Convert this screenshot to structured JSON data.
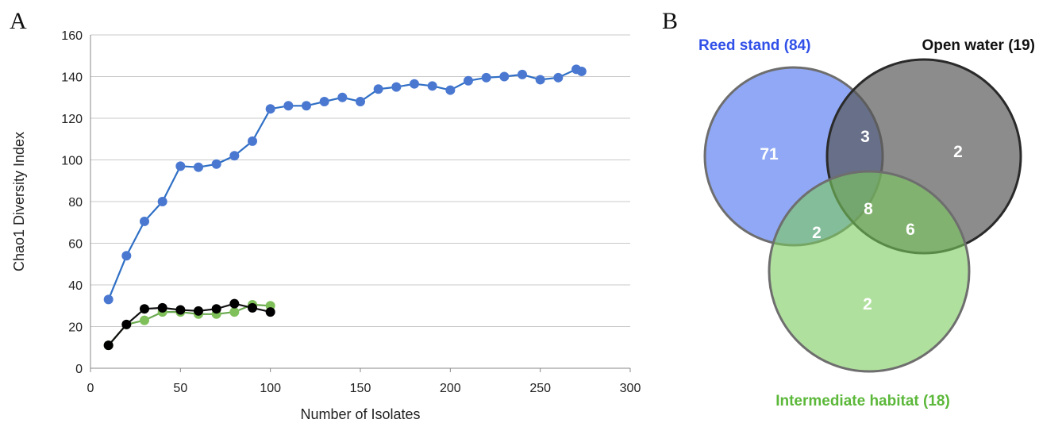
{
  "panels": {
    "a": "A",
    "b": "B"
  },
  "chart_data": [
    {
      "type": "line",
      "xlabel": "Number of Isolates",
      "ylabel": "Chao1 Diversity Index",
      "xlim": [
        0,
        300
      ],
      "ylim": [
        0,
        160
      ],
      "xticks": [
        0,
        50,
        100,
        150,
        200,
        250,
        300
      ],
      "yticks": [
        0,
        20,
        40,
        60,
        80,
        100,
        120,
        140,
        160
      ],
      "grid": "horizontal",
      "series": [
        {
          "color": "#2f6fc5",
          "marker_color": "#4a78d1",
          "x": [
            10,
            20,
            30,
            40,
            50,
            60,
            70,
            80,
            90,
            100,
            110,
            120,
            130,
            140,
            150,
            160,
            170,
            180,
            190,
            200,
            210,
            220,
            230,
            240,
            250,
            260,
            270,
            273
          ],
          "y": [
            33,
            54,
            70.5,
            80,
            97,
            96.5,
            98,
            102,
            109,
            124.5,
            126,
            126,
            128,
            130,
            128,
            134,
            135,
            136.5,
            135.5,
            133.5,
            138,
            139.5,
            140,
            141,
            138.5,
            139.5,
            143.5,
            142.5
          ]
        },
        {
          "color": "#6aa84f",
          "marker_color": "#7fc05a",
          "x": [
            10,
            20,
            30,
            40,
            50,
            60,
            70,
            80,
            90,
            100
          ],
          "y": [
            11,
            21,
            23,
            27,
            27,
            26,
            26,
            27,
            30.5,
            30
          ]
        },
        {
          "color": "#111111",
          "marker_color": "#000000",
          "x": [
            10,
            20,
            30,
            40,
            50,
            60,
            70,
            80,
            90,
            100
          ],
          "y": [
            11,
            21,
            28.5,
            29,
            28,
            27.5,
            28.5,
            31,
            29,
            27
          ]
        }
      ]
    },
    {
      "type": "venn",
      "sets": [
        {
          "label": "Reed stand (84)",
          "fill": "#5b7ff0",
          "label_color": "#3050e8"
        },
        {
          "label": "Open water (19)",
          "fill": "#555555",
          "label_color": "#111111"
        },
        {
          "label": "Intermediate habitat (18)",
          "fill": "#7ccc5e",
          "label_color": "#5cb83a"
        }
      ],
      "regions": {
        "reed_only": "71",
        "reed_open": "3",
        "open_only": "2",
        "all_three": "8",
        "reed_inter": "2",
        "open_inter": "6",
        "inter_only": "2"
      }
    }
  ]
}
